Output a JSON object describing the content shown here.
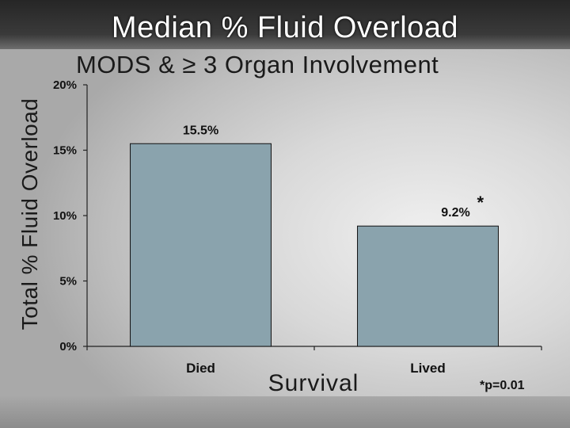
{
  "slide": {
    "title": "Median % Fluid Overload",
    "subtitle": "MODS & ≥ 3 Organ Involvement",
    "footnote": "*p=0.01"
  },
  "chart_data": {
    "type": "bar",
    "categories": [
      "Died",
      "Lived"
    ],
    "values": [
      15.5,
      9.2
    ],
    "value_labels": [
      "15.5%",
      "9.2%"
    ],
    "annotations": [
      "",
      "*"
    ],
    "xlabel": "Survival",
    "ylabel": "Total % Fluid Overload",
    "ylim": [
      0,
      20
    ],
    "yticks": [
      0,
      5,
      10,
      15,
      20
    ],
    "ytick_labels": [
      "0%",
      "5%",
      "10%",
      "15%",
      "20%"
    ],
    "grid": false,
    "legend": "none",
    "bar_color": "#8aa3ad",
    "bar_edge_color": "#111111"
  }
}
